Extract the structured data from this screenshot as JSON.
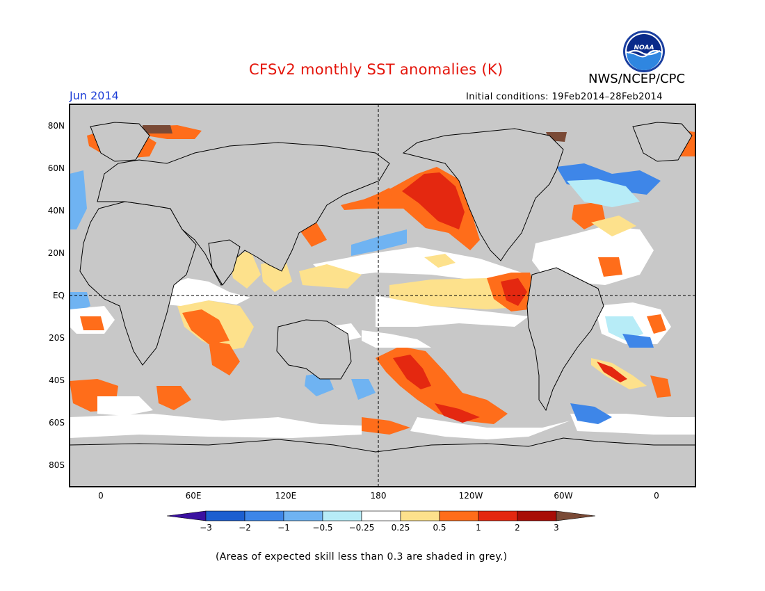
{
  "title": "CFSv2 monthly SST anomalies (K)",
  "agency": "NWS/NCEP/CPC",
  "logo": {
    "icon": "noaa-logo",
    "text": "NOAA",
    "colors": {
      "sky": "#2f86e0",
      "wave": "#0a2a8a",
      "rim": "#ffffff"
    }
  },
  "month_label": "Jun 2014",
  "initial_conditions": "Initial conditions: 19Feb2014–28Feb2014",
  "caption": "(Areas of expected skill less than 0.3 are shaded in grey.)",
  "map": {
    "projection": "cylindrical equidistant, centered on 180",
    "lat_labels": [
      "80N",
      "60N",
      "40N",
      "20N",
      "EQ",
      "20S",
      "40S",
      "60S",
      "80S"
    ],
    "lon_labels": [
      "0",
      "60E",
      "120E",
      "180",
      "120W",
      "60W",
      "0"
    ],
    "grid_lines": [
      "EQ",
      "180"
    ],
    "fill_colors": {
      "land": "#c8c8c8",
      "low_skill": "#c8c8c8",
      "frame": "#000000",
      "coast": "#000000"
    }
  },
  "colorbar": {
    "levels": [
      "−3",
      "−2",
      "−1",
      "−0.5",
      "−0.25",
      "0.25",
      "0.5",
      "1",
      "2",
      "3"
    ],
    "colors": [
      "#3a10a0",
      "#1c5fd0",
      "#3e86e8",
      "#6fb3f2",
      "#b7ecf7",
      "#ffffff",
      "#fde18c",
      "#ff6d1a",
      "#e42810",
      "#a80d06",
      "#7a4a36"
    ]
  }
}
